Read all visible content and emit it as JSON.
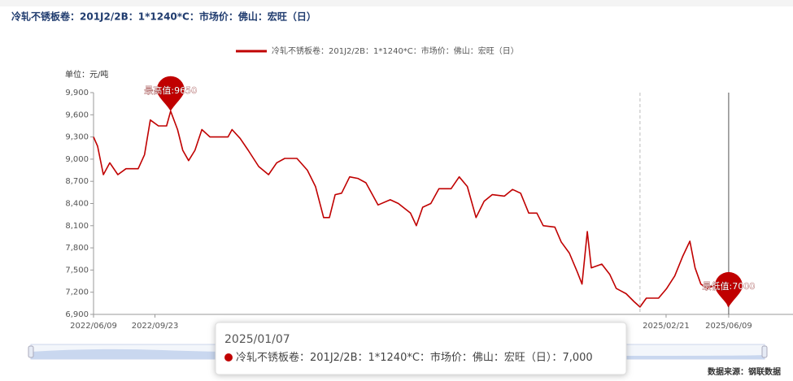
{
  "header": {
    "title": "冷轧不锈板卷：201J2/2B：1*1240*C：市场价：佛山：宏旺（日）"
  },
  "chart_data": {
    "type": "line",
    "unit_label": "单位：元/吨",
    "source": "数据来源：钢联数据",
    "x": [
      "2022/06/09",
      "2022/06/16",
      "2022/06/26",
      "2022/07/07",
      "2022/07/21",
      "2022/08/04",
      "2022/08/25",
      "2022/09/05",
      "2022/09/15",
      "2022/09/29",
      "2022/10/13",
      "2022/10/20",
      "2022/11/01",
      "2022/11/10",
      "2022/11/20",
      "2022/12/01",
      "2022/12/13",
      "2022/12/27",
      "2023/01/27",
      "2023/02/03",
      "2023/02/17",
      "2023/03/03",
      "2023/03/21",
      "2023/04/07",
      "2023/04/21",
      "2023/05/05",
      "2023/05/26",
      "2023/06/13",
      "2023/06/27",
      "2023/07/11",
      "2023/07/21",
      "2023/07/31",
      "2023/08/11",
      "2023/08/25",
      "2023/09/08",
      "2023/09/22",
      "2023/10/13",
      "2023/11/03",
      "2023/11/17",
      "2023/12/08",
      "2023/12/18",
      "2023/12/29",
      "2024/01/12",
      "2024/01/26",
      "2024/02/16",
      "2024/03/01",
      "2024/03/15",
      "2024/03/30",
      "2024/04/13",
      "2024/04/27",
      "2024/05/18",
      "2024/06/01",
      "2024/06/15",
      "2024/06/29",
      "2024/07/13",
      "2024/07/24",
      "2024/08/13",
      "2024/08/24",
      "2024/09/07",
      "2024/09/21",
      "2024/09/29",
      "2024/10/08",
      "2024/10/15",
      "2024/11/02",
      "2024/11/16",
      "2024/11/27",
      "2024/12/14",
      "2024/12/28",
      "2025/01/07",
      "2025/01/18",
      "2025/02/08",
      "2025/02/22",
      "2025/03/08",
      "2025/03/22",
      "2025/04/03",
      "2025/04/12",
      "2025/04/22",
      "2025/05/03",
      "2025/05/15",
      "2025/05/29",
      "2025/06/09"
    ],
    "series": [
      {
        "name": "冷轧不锈板卷：201J2/2B：1*1240*C：市场价：佛山：宏旺（日）",
        "color": "#c00000",
        "values": [
          9300,
          9175,
          8790,
          8950,
          8790,
          8870,
          8870,
          9060,
          9530,
          9450,
          9450,
          9650,
          9400,
          9120,
          8980,
          9120,
          9400,
          9300,
          9300,
          9400,
          9280,
          9120,
          8900,
          8790,
          8950,
          9010,
          9010,
          8850,
          8630,
          8210,
          8210,
          8520,
          8540,
          8760,
          8740,
          8680,
          8380,
          8450,
          8400,
          8270,
          8100,
          8350,
          8400,
          8600,
          8600,
          8760,
          8630,
          8210,
          8430,
          8520,
          8500,
          8590,
          8540,
          8270,
          8270,
          8100,
          8080,
          7880,
          7730,
          7470,
          7310,
          8020,
          7530,
          7580,
          7440,
          7250,
          7180,
          7070,
          7000,
          7120,
          7120,
          7250,
          7420,
          7690,
          7890,
          7530,
          7310,
          7250,
          7290,
          7200,
          7000
        ]
      }
    ],
    "xlim": [
      "2022/06/09",
      "2025/09/28"
    ],
    "xticks": [
      "2022/06/09",
      "2022/09/23",
      "2025/02/21",
      "2025/06/09"
    ],
    "ylim": [
      6900,
      9900
    ],
    "yticks": [
      {
        "value": 6900,
        "label": "6,900"
      },
      {
        "value": 7200,
        "label": "7,200"
      },
      {
        "value": 7500,
        "label": "7,500"
      },
      {
        "value": 7800,
        "label": "7,800"
      },
      {
        "value": 8100,
        "label": "8,100"
      },
      {
        "value": 8400,
        "label": "8,400"
      },
      {
        "value": 8700,
        "label": "8,700"
      },
      {
        "value": 9000,
        "label": "9,000"
      },
      {
        "value": 9300,
        "label": "9,300"
      },
      {
        "value": 9600,
        "label": "9,600"
      },
      {
        "value": 9900,
        "label": "9,900"
      }
    ],
    "annotations": [
      {
        "label": "最高值:9650",
        "x": "2022/10/20",
        "value": 9650
      },
      {
        "label": "最低值:7000",
        "x": "2025/06/09",
        "value": 7000
      }
    ],
    "tooltip": {
      "date": "2025/01/07",
      "separator": "：",
      "value": 7000,
      "value_label": "7,000"
    }
  }
}
